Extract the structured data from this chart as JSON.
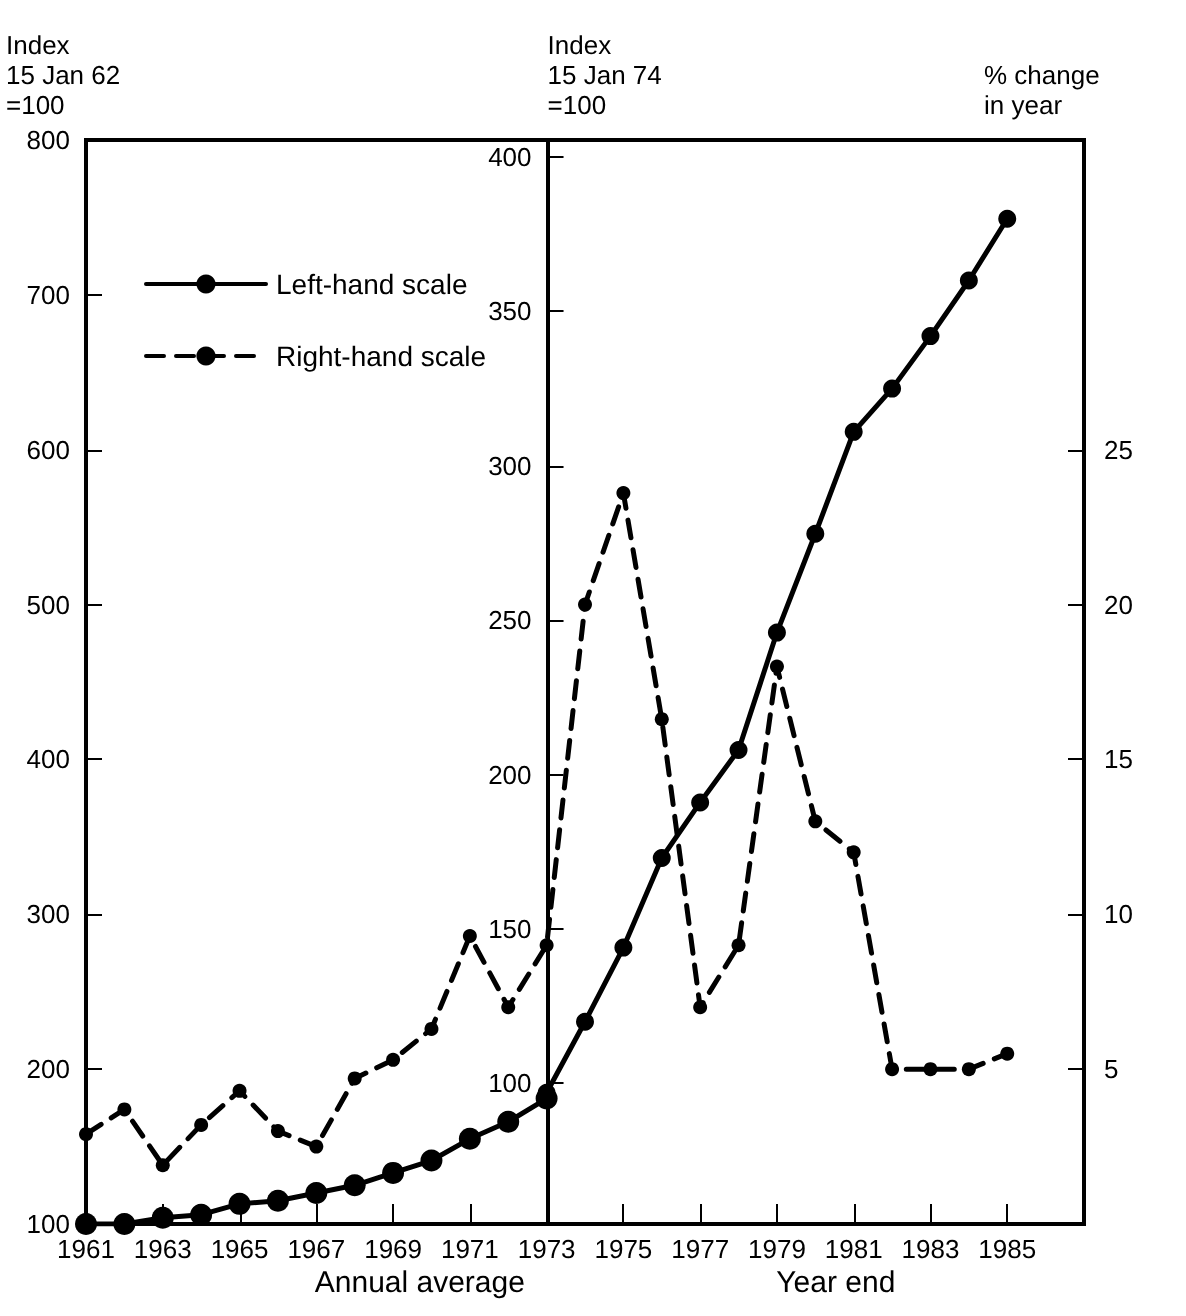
{
  "chart_data": {
    "type": "line",
    "ylabel": "Index\n15 Jan 62\n=100",
    "y3label": "Index\n15 Jan 74\n=100",
    "y2label": "% change\nin year",
    "annotations": [
      "Annual average",
      "Year end"
    ],
    "xlim": [
      1961,
      1987
    ],
    "xticks": [
      1961,
      1963,
      1965,
      1967,
      1969,
      1971,
      1973,
      1975,
      1977,
      1979,
      1981,
      1983,
      1985
    ],
    "ylim": [
      100,
      800
    ],
    "yticks": [
      100,
      200,
      300,
      400,
      500,
      600,
      700,
      800
    ],
    "y3lim": [
      54.5,
      405.5
    ],
    "y3ticks": [
      100,
      150,
      200,
      250,
      300,
      350,
      400
    ],
    "y2lim": [
      0,
      35
    ],
    "y2ticks": [
      5,
      10,
      15,
      20,
      25
    ],
    "grid": false,
    "legend": "top left",
    "marker": "circle",
    "series": [
      {
        "name": "Left-hand scale",
        "color": "#000000",
        "line_style": "solid",
        "axis": "y",
        "x": [
          1961,
          1962,
          1963,
          1964,
          1965,
          1966,
          1967,
          1968,
          1969,
          1970,
          1971,
          1972,
          1973
        ],
        "values": [
          100,
          100,
          104,
          106,
          113,
          115,
          120,
          125,
          133,
          141,
          155,
          166,
          181
        ]
      },
      {
        "color": "#000000",
        "line_style": "solid",
        "axis": "y3",
        "x": [
          1973,
          1974,
          1975,
          1976,
          1977,
          1978,
          1979,
          1980,
          1981,
          1982,
          1983,
          1984,
          1985
        ],
        "values": [
          97,
          120,
          144,
          173,
          191,
          208,
          246,
          278,
          311,
          325,
          342,
          360,
          380
        ]
      },
      {
        "name": "Right-hand scale",
        "color": "#000000",
        "line_style": "dashed",
        "axis": "y2",
        "x": [
          1961,
          1962,
          1963,
          1964,
          1965,
          1966,
          1967,
          1968,
          1969,
          1970,
          1971,
          1972,
          1973,
          1974,
          1975,
          1976,
          1977,
          1978,
          1979,
          1980,
          1981,
          1982,
          1983,
          1984,
          1985
        ],
        "values": [
          2.9,
          3.7,
          1.9,
          3.2,
          4.3,
          3.0,
          2.5,
          4.7,
          5.3,
          6.3,
          9.3,
          7.0,
          9.0,
          20.0,
          23.6,
          16.3,
          7.0,
          9.0,
          18.0,
          13.0,
          12.0,
          5.0,
          5.0,
          5.0,
          5.5
        ]
      }
    ]
  }
}
